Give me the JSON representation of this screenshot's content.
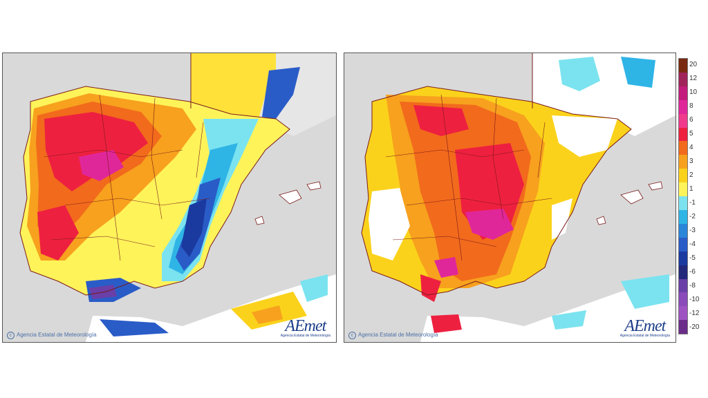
{
  "left_map": {
    "credit": "Agencia Estatal de Meteorología",
    "logo": "AEmet",
    "logo_sub": "Agencia Estatal de Meteorología"
  },
  "right_map": {
    "credit": "Agencia Estatal de Meteorología",
    "logo": "AEmet",
    "logo_sub": "Agencia Estatal de Meteorología"
  },
  "legend": {
    "labels": [
      "20",
      "12",
      "10",
      "8",
      "6",
      "5",
      "4",
      "3",
      "2",
      "1",
      "-1",
      "-2",
      "-3",
      "-4",
      "-5",
      "-6",
      "-8",
      "-10",
      "-12",
      "-20"
    ],
    "colors": [
      "#7a2a10",
      "#a0245a",
      "#c41c7c",
      "#e0279a",
      "#f03a8c",
      "#ee2040",
      "#f26a1c",
      "#f7a11e",
      "#fbd21b",
      "#fff35a",
      "#7be3ef",
      "#2fb4e6",
      "#2a86d8",
      "#2a5cc8",
      "#1b3aa0",
      "#24287a",
      "#6a3fa8",
      "#8a4aba",
      "#9f52c2",
      "#6b2d8a"
    ]
  }
}
